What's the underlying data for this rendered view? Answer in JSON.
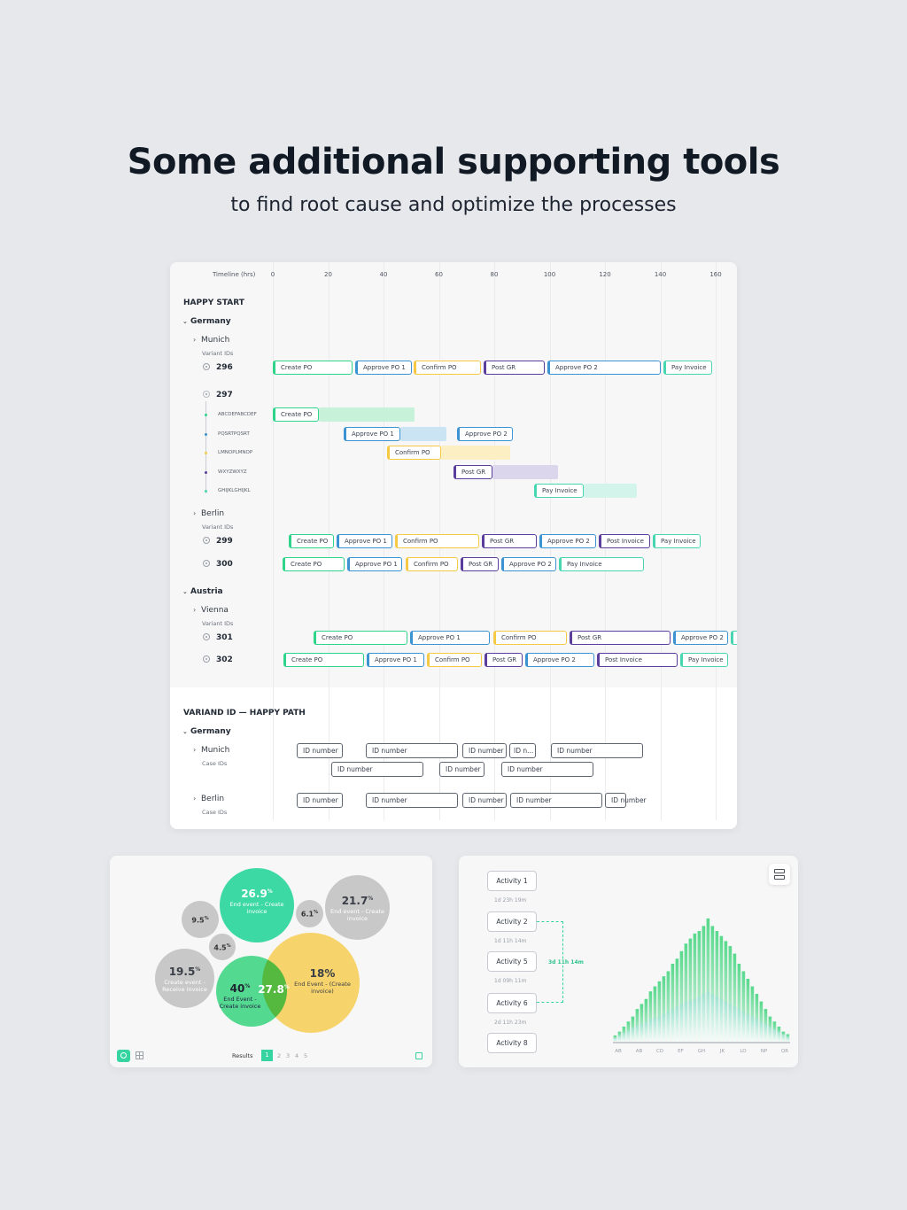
{
  "header": {
    "title": "Some additional supporting tools",
    "subtitle": "to find root cause and optimize the processes"
  },
  "timeline": {
    "label": "Timeline (hrs)",
    "ticks": [
      "0",
      "20",
      "40",
      "60",
      "80",
      "100",
      "120",
      "140",
      "160"
    ]
  },
  "colors": {
    "create": "#2ed48a",
    "approve": "#3b93d1",
    "confirm": "#f5c944",
    "post": "#5a3d9c",
    "pay": "#48d6b0",
    "accent": "#36d4a0",
    "yellow": "#f8d36a",
    "grey": "#c8c8c8"
  },
  "happy_start": {
    "title": "HAPPY START",
    "germany": {
      "name": "Germany",
      "munich": {
        "name": "Munich",
        "sub": "Variant IDs"
      },
      "berlin": {
        "name": "Berlin",
        "sub": "Variant IDs"
      }
    },
    "austria": {
      "name": "Austria",
      "vienna": {
        "name": "Vienna",
        "sub": "Variant IDs"
      }
    },
    "variants": {
      "v296": {
        "id": "296",
        "bars": [
          "Create PO",
          "Approve PO 1",
          "Confirm PO",
          "Post GR",
          "Approve PO 2",
          "Pay Invoice"
        ]
      },
      "v297": {
        "id": "297",
        "cases": [
          "ABCDEFABCDEF",
          "PQSRTPQSRT",
          "LMNOPLMNOP",
          "WXYZWXYZ",
          "GHIJKLGHIJKL"
        ],
        "bars": [
          "Create PO",
          "Approve PO 1",
          "Approve PO 2",
          "Confirm PO",
          "Post GR",
          "Pay Invoice"
        ]
      },
      "v299": {
        "id": "299",
        "bars": [
          "Create PO",
          "Approve PO 1",
          "Confirm PO",
          "Post GR",
          "Approve PO 2",
          "Post Invoice",
          "Pay Invoice"
        ]
      },
      "v300": {
        "id": "300",
        "bars": [
          "Create PO",
          "Approve PO 1",
          "Confirm PO",
          "Post GR",
          "Approve PO 2",
          "Pay Invoice"
        ]
      },
      "v301": {
        "id": "301",
        "bars": [
          "Create PO",
          "Approve PO 1",
          "Confirm PO",
          "Post GR",
          "Approve PO 2"
        ]
      },
      "v302": {
        "id": "302",
        "bars": [
          "Create PO",
          "Approve PO 1",
          "Confirm PO",
          "Post GR",
          "Approve PO 2",
          "Post Invoice",
          "Pay Invoice"
        ]
      }
    }
  },
  "happy_path": {
    "title": "VARIAND ID — HAPPY PATH",
    "germany": "Germany",
    "munich": {
      "name": "Munich",
      "sub": "Case IDs"
    },
    "berlin": {
      "name": "Berlin",
      "sub": "Case IDs"
    },
    "box_labels": [
      "ID number",
      "ID number",
      "ID number",
      "ID n...",
      "ID number",
      "ID number",
      "ID number",
      "ID number",
      "ID number",
      "ID number",
      "ID number",
      "ID number",
      "ID number"
    ]
  },
  "venn": {
    "bubbles": [
      {
        "value": "26.9",
        "sup": "%",
        "label": "End event - Create invoice"
      },
      {
        "value": "21.7",
        "sup": "%",
        "label": "End event - Create invoice"
      },
      {
        "value": "9.5",
        "sup": "%"
      },
      {
        "value": "6.1",
        "sup": "%"
      },
      {
        "value": "4.5",
        "sup": "%"
      },
      {
        "value": "19.5",
        "sup": "%",
        "label": "Create event - Receive invoice"
      },
      {
        "value": "40",
        "sup": "%",
        "label": "End Event - Create invoice"
      },
      {
        "value": "27.8",
        "sup": "%"
      },
      {
        "value": "18%",
        "label": "End Event - (Create invoice)"
      }
    ],
    "results_label": "Results",
    "pages": [
      "1",
      "2",
      "3",
      "4",
      "5"
    ]
  },
  "flow": {
    "activities": [
      "Activity 1",
      "Activity 2",
      "Activity 5",
      "Activity 6",
      "Activity 8"
    ],
    "durations": [
      "1d 23h 19m",
      "1d 11h 14m",
      "1d 09h 11m",
      "2d 11h 23m"
    ],
    "highlight": "3d 11h 14m"
  },
  "chart_data": {
    "type": "bar",
    "x_tick_labels": [
      "AB",
      "AB",
      "CD",
      "EF",
      "GH",
      "JK",
      "LO",
      "NP",
      "QR"
    ],
    "series": [
      {
        "values": [
          5,
          8,
          12,
          16,
          20,
          26,
          30,
          34,
          40,
          44,
          48,
          52,
          56,
          62,
          66,
          72,
          78,
          82,
          86,
          88,
          92,
          98,
          92,
          88,
          84,
          80,
          76,
          70,
          62,
          56,
          50,
          44,
          38,
          32,
          26,
          20,
          16,
          12,
          8,
          6
        ]
      },
      {
        "values": [
          3,
          5,
          7,
          9,
          11,
          13,
          14,
          16,
          18,
          19,
          20,
          22,
          24,
          26,
          28,
          30,
          32,
          33,
          34,
          36,
          38,
          40,
          38,
          36,
          34,
          32,
          30,
          28,
          26,
          24,
          22,
          20,
          18,
          16,
          14,
          12,
          10,
          8,
          6,
          4
        ]
      }
    ]
  }
}
